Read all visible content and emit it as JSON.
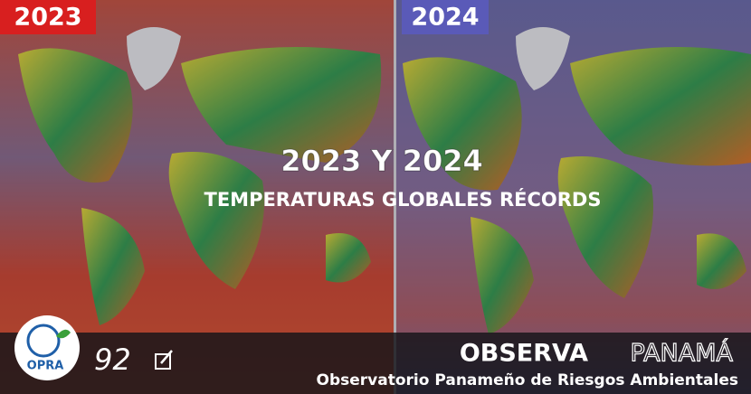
{
  "panels": [
    {
      "label": "2023"
    },
    {
      "label": "2024"
    }
  ],
  "headline": {
    "title": "2023 Y 2024",
    "subtitle": "TEMPERATURAS GLOBALES RÉCORDS"
  },
  "footer": {
    "logo_text": "OPRA",
    "count": 92,
    "brand_first": "OBSERVA",
    "brand_second": "PANAMÁ",
    "tagline": "Observatorio Panameño de Riesgos Ambientales"
  }
}
